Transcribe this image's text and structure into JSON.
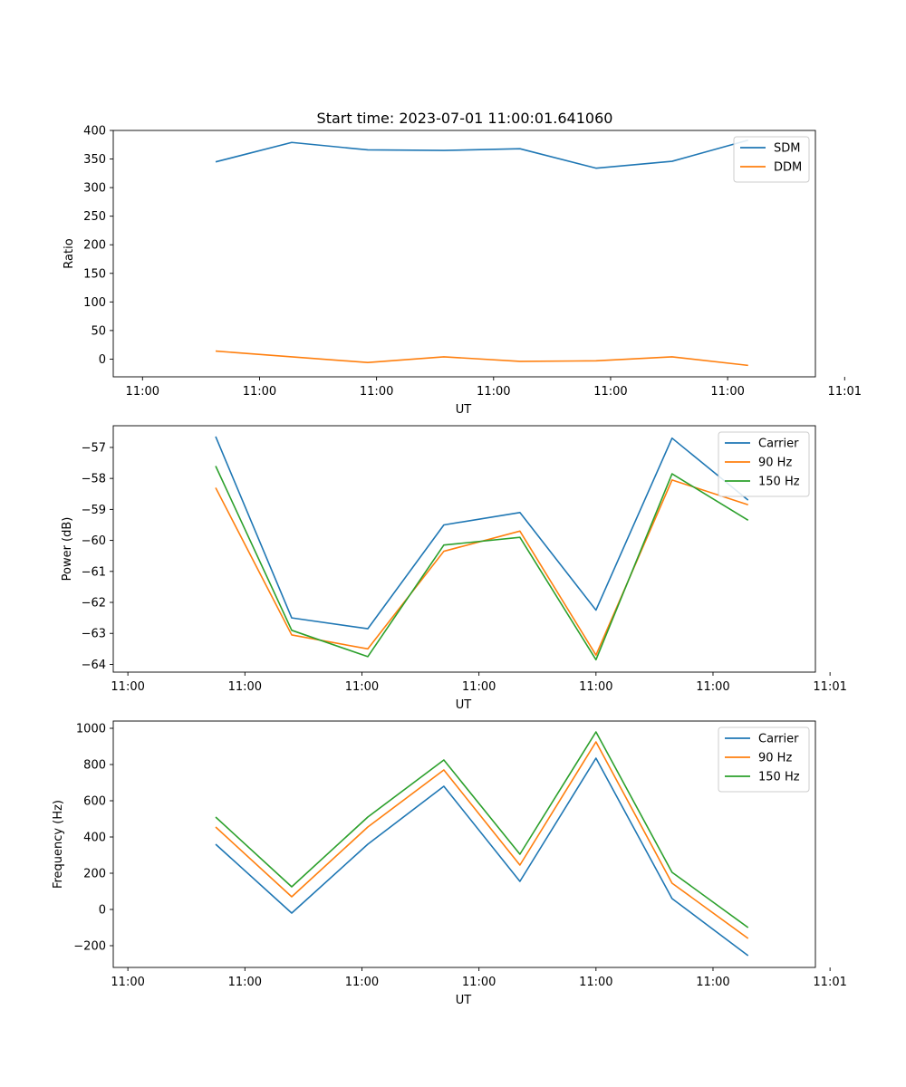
{
  "figure_title": "Start time: 2023-07-01 11:00:01.641060",
  "colors": {
    "blue": "#1f77b4",
    "orange": "#ff7f0e",
    "green": "#2ca02c"
  },
  "chart_data": [
    {
      "type": "line",
      "title": "Start time: 2023-07-01 11:00:01.641060",
      "xlabel": "UT",
      "ylabel": "Ratio",
      "x": [
        1.75,
        3.05,
        4.35,
        5.65,
        6.95,
        8.25,
        9.55,
        10.85
      ],
      "xlim": [
        0,
        12
      ],
      "xticks": [
        0.5,
        2.5,
        4.5,
        6.5,
        8.5,
        10.5,
        12.5
      ],
      "xticklabels": [
        "11:00",
        "11:00",
        "11:00",
        "11:00",
        "11:00",
        "11:00",
        "11:01"
      ],
      "ylim": [
        -31,
        400
      ],
      "yticks": [
        0,
        50,
        100,
        150,
        200,
        250,
        300,
        350,
        400
      ],
      "yticklabels": [
        "0",
        "50",
        "100",
        "150",
        "200",
        "250",
        "300",
        "350",
        "400"
      ],
      "legend": "top-right",
      "series": [
        {
          "name": "SDM",
          "color": "#1f77b4",
          "values": [
            345,
            379,
            366,
            365,
            368,
            334,
            346,
            383
          ]
        },
        {
          "name": "DDM",
          "color": "#ff7f0e",
          "values": [
            14,
            4,
            -6,
            4,
            -4,
            -3,
            4,
            -11
          ]
        }
      ]
    },
    {
      "type": "line",
      "title": "",
      "xlabel": "UT",
      "ylabel": "Power (dB)",
      "x": [
        1.5,
        2.8,
        4.1,
        5.4,
        6.7,
        8.0,
        9.3,
        10.6
      ],
      "xlim": [
        -0.25,
        11.75
      ],
      "xticks": [
        0.0,
        2.0,
        4.0,
        6.0,
        8.0,
        10.0,
        12.0
      ],
      "xticklabels": [
        "11:00",
        "11:00",
        "11:00",
        "11:00",
        "11:00",
        "11:00",
        "11:01"
      ],
      "ylim": [
        -64.25,
        -56.3
      ],
      "yticks": [
        -64,
        -63,
        -62,
        -61,
        -60,
        -59,
        -58,
        -57
      ],
      "yticklabels": [
        "−64",
        "−63",
        "−62",
        "−61",
        "−60",
        "−59",
        "−58",
        "−57"
      ],
      "legend": "top-right",
      "series": [
        {
          "name": "Carrier",
          "color": "#1f77b4",
          "values": [
            -56.65,
            -62.5,
            -62.85,
            -59.5,
            -59.1,
            -62.25,
            -56.7,
            -58.7
          ]
        },
        {
          "name": "90 Hz",
          "color": "#ff7f0e",
          "values": [
            -58.3,
            -63.05,
            -63.5,
            -60.35,
            -59.7,
            -63.7,
            -58.05,
            -58.85
          ]
        },
        {
          "name": "150 Hz",
          "color": "#2ca02c",
          "values": [
            -57.6,
            -62.9,
            -63.75,
            -60.15,
            -59.9,
            -63.85,
            -57.85,
            -59.35
          ]
        }
      ]
    },
    {
      "type": "line",
      "title": "",
      "xlabel": "UT",
      "ylabel": "Frequency (Hz)",
      "x": [
        1.5,
        2.8,
        4.1,
        5.4,
        6.7,
        8.0,
        9.3,
        10.6
      ],
      "xlim": [
        -0.25,
        11.75
      ],
      "xticks": [
        0.0,
        2.0,
        4.0,
        6.0,
        8.0,
        10.0,
        12.0
      ],
      "xticklabels": [
        "11:00",
        "11:00",
        "11:00",
        "11:00",
        "11:00",
        "11:00",
        "11:01"
      ],
      "ylim": [
        -320,
        1040
      ],
      "yticks": [
        -200,
        0,
        200,
        400,
        600,
        800,
        1000
      ],
      "yticklabels": [
        "−200",
        "0",
        "200",
        "400",
        "600",
        "800",
        "1000"
      ],
      "legend": "top-right",
      "series": [
        {
          "name": "Carrier",
          "color": "#1f77b4",
          "values": [
            360,
            -20,
            360,
            680,
            155,
            835,
            60,
            -255
          ]
        },
        {
          "name": "90 Hz",
          "color": "#ff7f0e",
          "values": [
            455,
            70,
            455,
            770,
            245,
            925,
            145,
            -160
          ]
        },
        {
          "name": "150 Hz",
          "color": "#2ca02c",
          "values": [
            510,
            125,
            510,
            825,
            305,
            980,
            205,
            -100
          ]
        }
      ]
    }
  ]
}
